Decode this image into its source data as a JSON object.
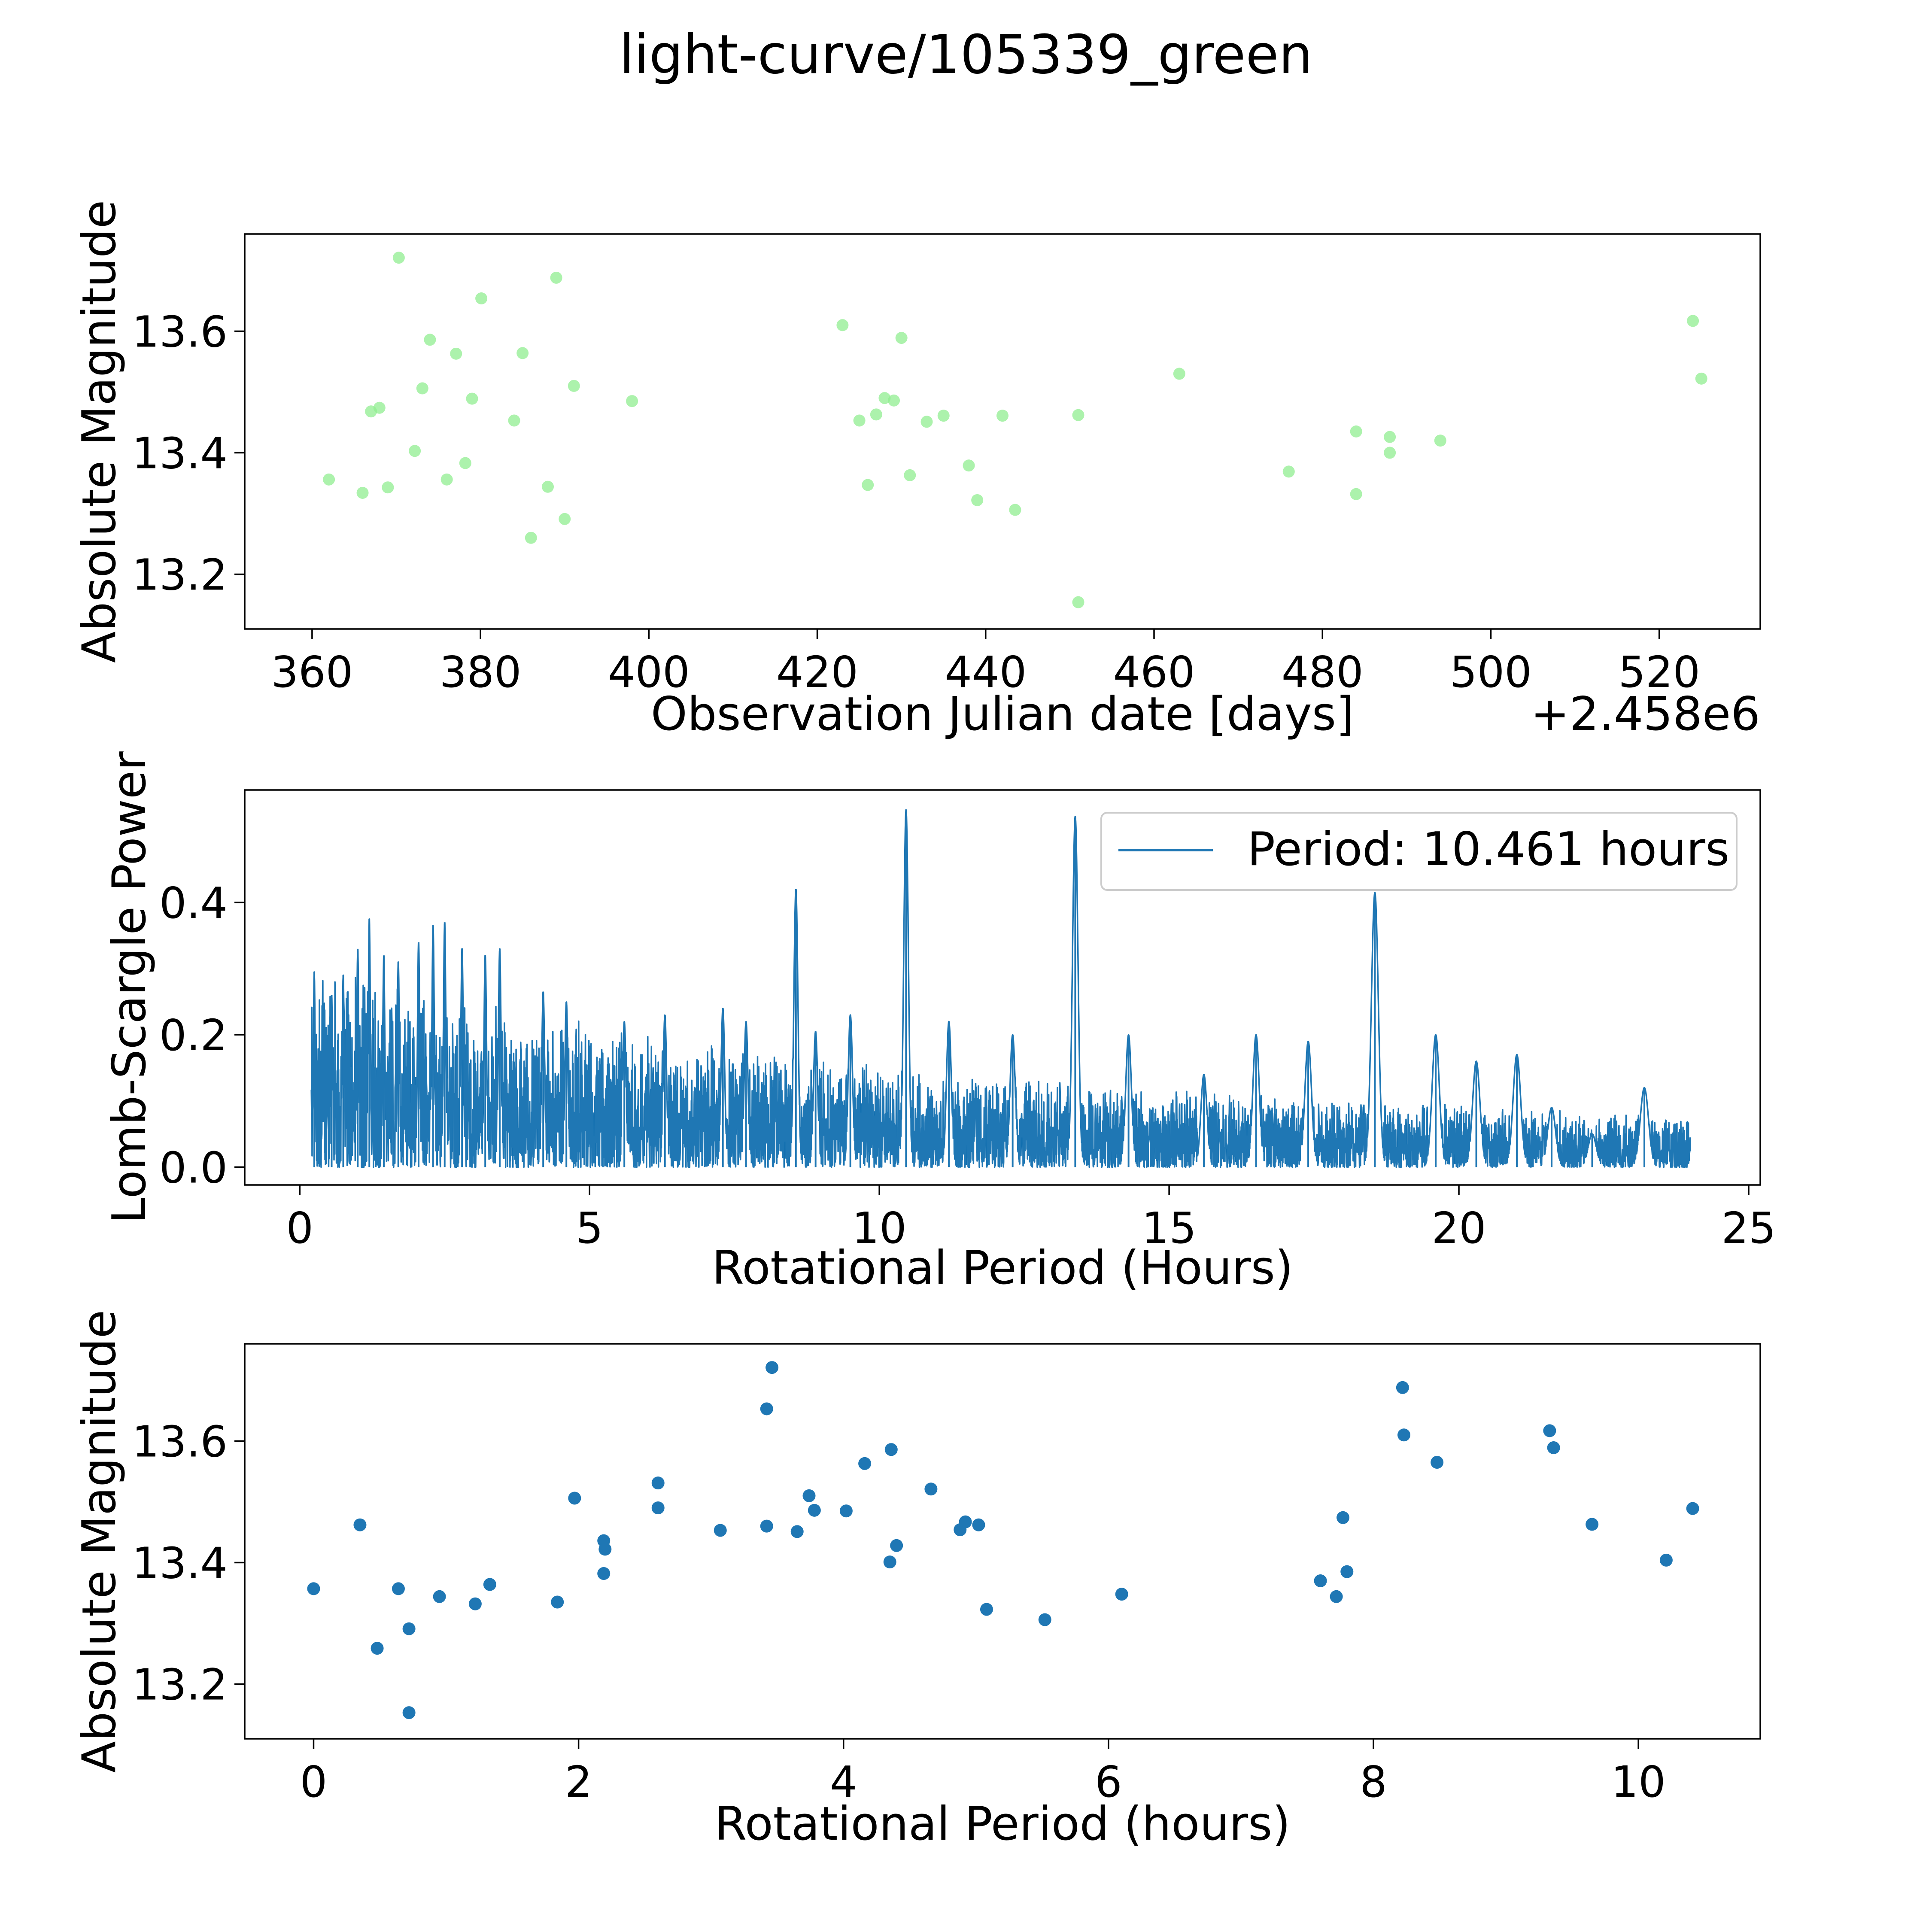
{
  "figure": {
    "title": "light-curve/105339_green"
  },
  "colors": {
    "green_points": "#90ee90",
    "blue": "#1f77b4",
    "axis": "#000000",
    "legend_border": "#cccccc"
  },
  "chart_data": [
    {
      "type": "scatter",
      "name": "light-curve",
      "title": "",
      "xlabel": "Observation Julian date [days]",
      "ylabel": "Absolute Magnitude",
      "x_offset_label": "+2.458e6",
      "xlim": [
        352,
        532
      ],
      "ylim": [
        13.11,
        13.76
      ],
      "xticks": [
        360,
        380,
        400,
        420,
        440,
        460,
        480,
        500,
        520
      ],
      "yticks": [
        13.2,
        13.4,
        13.6
      ],
      "ytick_labels": [
        "13.2",
        "13.4",
        "13.6"
      ],
      "color": "green_points",
      "points": [
        [
          362.0,
          13.356
        ],
        [
          366.0,
          13.334
        ],
        [
          367.0,
          13.468
        ],
        [
          368.0,
          13.474
        ],
        [
          369.0,
          13.343
        ],
        [
          370.3,
          13.721
        ],
        [
          372.2,
          13.403
        ],
        [
          373.1,
          13.506
        ],
        [
          374.0,
          13.586
        ],
        [
          376.0,
          13.356
        ],
        [
          377.1,
          13.563
        ],
        [
          378.2,
          13.383
        ],
        [
          379.0,
          13.489
        ],
        [
          380.1,
          13.654
        ],
        [
          384.0,
          13.453
        ],
        [
          385.0,
          13.564
        ],
        [
          386.0,
          13.26
        ],
        [
          388.0,
          13.344
        ],
        [
          389.0,
          13.688
        ],
        [
          390.0,
          13.291
        ],
        [
          391.1,
          13.51
        ],
        [
          398.0,
          13.485
        ],
        [
          423.0,
          13.61
        ],
        [
          425.0,
          13.453
        ],
        [
          426.0,
          13.347
        ],
        [
          427.0,
          13.463
        ],
        [
          428.0,
          13.49
        ],
        [
          429.1,
          13.486
        ],
        [
          430.0,
          13.589
        ],
        [
          431.0,
          13.363
        ],
        [
          433.0,
          13.451
        ],
        [
          435.0,
          13.461
        ],
        [
          438.0,
          13.379
        ],
        [
          439.0,
          13.322
        ],
        [
          442.0,
          13.461
        ],
        [
          443.5,
          13.306
        ],
        [
          451.0,
          13.462
        ],
        [
          451.0,
          13.154
        ],
        [
          463.0,
          13.53
        ],
        [
          476.0,
          13.369
        ],
        [
          484.0,
          13.435
        ],
        [
          484.0,
          13.332
        ],
        [
          488.0,
          13.426
        ],
        [
          488.0,
          13.4
        ],
        [
          494.0,
          13.42
        ],
        [
          524.0,
          13.617
        ],
        [
          525.0,
          13.522
        ]
      ]
    },
    {
      "type": "line",
      "name": "periodogram",
      "title": "",
      "xlabel": "Rotational Period (Hours)",
      "ylabel": "Lomb-Scargle Power",
      "xlim": [
        -0.95,
        25.2
      ],
      "ylim": [
        -0.027,
        0.57
      ],
      "xticks": [
        0,
        5,
        10,
        15,
        20,
        25
      ],
      "yticks": [
        0.0,
        0.2,
        0.4
      ],
      "ytick_labels": [
        "0.0",
        "0.2",
        "0.4"
      ],
      "color": "blue",
      "period_range": [
        0.2,
        24.0
      ],
      "legend": {
        "label": "Period: 10.461 hours",
        "loc": "upper right"
      },
      "peaks": [
        [
          0.25,
          0.295
        ],
        [
          0.55,
          0.26
        ],
        [
          0.75,
          0.29
        ],
        [
          1.0,
          0.33
        ],
        [
          1.2,
          0.375
        ],
        [
          1.45,
          0.32
        ],
        [
          1.7,
          0.31
        ],
        [
          2.05,
          0.34
        ],
        [
          2.3,
          0.365
        ],
        [
          2.5,
          0.37
        ],
        [
          2.8,
          0.33
        ],
        [
          3.2,
          0.32
        ],
        [
          3.45,
          0.33
        ],
        [
          4.2,
          0.265
        ],
        [
          4.6,
          0.25
        ],
        [
          5.6,
          0.22
        ],
        [
          6.3,
          0.23
        ],
        [
          7.3,
          0.24
        ],
        [
          7.7,
          0.22
        ],
        [
          8.56,
          0.42
        ],
        [
          8.9,
          0.205
        ],
        [
          9.5,
          0.23
        ],
        [
          10.461,
          0.54
        ],
        [
          11.2,
          0.22
        ],
        [
          12.3,
          0.2
        ],
        [
          13.38,
          0.53
        ],
        [
          14.3,
          0.2
        ],
        [
          15.6,
          0.14
        ],
        [
          16.5,
          0.2
        ],
        [
          17.4,
          0.19
        ],
        [
          18.55,
          0.415
        ],
        [
          19.6,
          0.2
        ],
        [
          20.3,
          0.16
        ],
        [
          21.0,
          0.17
        ],
        [
          21.6,
          0.09
        ],
        [
          22.3,
          0.05
        ],
        [
          23.2,
          0.12
        ]
      ]
    },
    {
      "type": "scatter",
      "name": "phase-folded",
      "title": "",
      "xlabel": "Rotational Period (hours)",
      "ylabel": "Absolute Magnitude",
      "xlim": [
        -0.52,
        10.92
      ],
      "ylim": [
        13.11,
        13.76
      ],
      "xticks": [
        0,
        2,
        4,
        6,
        8,
        10
      ],
      "yticks": [
        13.2,
        13.4,
        13.6
      ],
      "ytick_labels": [
        "13.2",
        "13.4",
        "13.6"
      ],
      "color": "blue",
      "points": [
        [
          0.0,
          13.357
        ],
        [
          0.35,
          13.462
        ],
        [
          0.64,
          13.357
        ],
        [
          0.48,
          13.259
        ],
        [
          0.72,
          13.291
        ],
        [
          0.72,
          13.153
        ],
        [
          0.95,
          13.344
        ],
        [
          1.22,
          13.332
        ],
        [
          1.33,
          13.364
        ],
        [
          1.84,
          13.335
        ],
        [
          1.97,
          13.506
        ],
        [
          2.19,
          13.436
        ],
        [
          2.2,
          13.422
        ],
        [
          2.19,
          13.382
        ],
        [
          2.6,
          13.531
        ],
        [
          2.6,
          13.49
        ],
        [
          3.07,
          13.453
        ],
        [
          3.42,
          13.46
        ],
        [
          3.42,
          13.653
        ],
        [
          3.46,
          13.721
        ],
        [
          3.65,
          13.451
        ],
        [
          3.74,
          13.51
        ],
        [
          3.78,
          13.486
        ],
        [
          4.02,
          13.485
        ],
        [
          4.16,
          13.563
        ],
        [
          4.36,
          13.586
        ],
        [
          4.35,
          13.401
        ],
        [
          4.4,
          13.428
        ],
        [
          4.66,
          13.521
        ],
        [
          4.88,
          13.454
        ],
        [
          4.92,
          13.467
        ],
        [
          5.02,
          13.462
        ],
        [
          5.08,
          13.323
        ],
        [
          5.52,
          13.306
        ],
        [
          6.1,
          13.348
        ],
        [
          7.6,
          13.37
        ],
        [
          7.72,
          13.344
        ],
        [
          7.77,
          13.474
        ],
        [
          7.8,
          13.385
        ],
        [
          8.22,
          13.688
        ],
        [
          8.23,
          13.61
        ],
        [
          8.48,
          13.565
        ],
        [
          9.33,
          13.617
        ],
        [
          9.36,
          13.589
        ],
        [
          9.65,
          13.463
        ],
        [
          10.21,
          13.404
        ],
        [
          10.41,
          13.489
        ]
      ]
    }
  ]
}
